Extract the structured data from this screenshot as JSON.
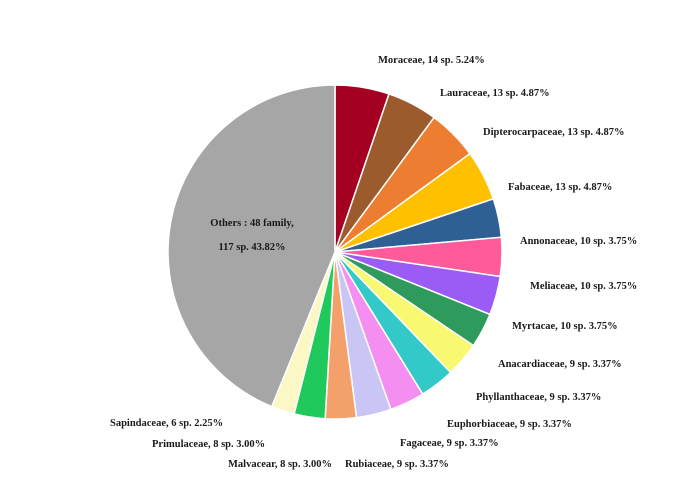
{
  "chart_data": {
    "type": "pie",
    "title": "",
    "start_angle_deg": 0,
    "direction": "clockwise",
    "slices": [
      {
        "label": "Moraceae, 14 sp. 5.24%",
        "value": 5.24,
        "color": "#a50021"
      },
      {
        "label": "Lauraceae, 13 sp. 4.87%",
        "value": 4.87,
        "color": "#9c5b2c"
      },
      {
        "label": "Dipterocarpaceae, 13 sp. 4.87%",
        "value": 4.87,
        "color": "#ed7d31"
      },
      {
        "label": "Fabaceae, 13 sp. 4.87%",
        "value": 4.87,
        "color": "#ffc000"
      },
      {
        "label": "Annonaceae, 10 sp. 3.75%",
        "value": 3.75,
        "color": "#2e6096"
      },
      {
        "label": "Meliaceae, 10 sp. 3.75%",
        "value": 3.75,
        "color": "#ff5b9b"
      },
      {
        "label": "Myrtacae, 10 sp. 3.75%",
        "value": 3.75,
        "color": "#9b5cf5"
      },
      {
        "label": "Anacardiaceae, 9 sp. 3.37%",
        "value": 3.37,
        "color": "#2e9a5c"
      },
      {
        "label": "Phyllanthaceae, 9 sp. 3.37%",
        "value": 3.37,
        "color": "#f9f871"
      },
      {
        "label": "Euphorbiaceae, 9 sp. 3.37%",
        "value": 3.37,
        "color": "#33c9c9"
      },
      {
        "label": "Fagaceae, 9 sp.  3.37%",
        "value": 3.37,
        "color": "#f48ef0"
      },
      {
        "label": "Rubiaceae, 9 sp. 3.37%",
        "value": 3.37,
        "color": "#c9c6f5"
      },
      {
        "label": "Malvacear, 8 sp. 3.00%",
        "value": 3.0,
        "color": "#f4a06a"
      },
      {
        "label": "Primulaceae, 8 sp.  3.00%",
        "value": 3.0,
        "color": "#1fc95c"
      },
      {
        "label": "Sapindaceae, 6 sp. 2.25%",
        "value": 2.25,
        "color": "#fbf8c6"
      },
      {
        "label": "Others : 48 family,",
        "label2": "117 sp.  43.82%",
        "value": 43.82,
        "color": "#a6a6a6"
      }
    ]
  }
}
